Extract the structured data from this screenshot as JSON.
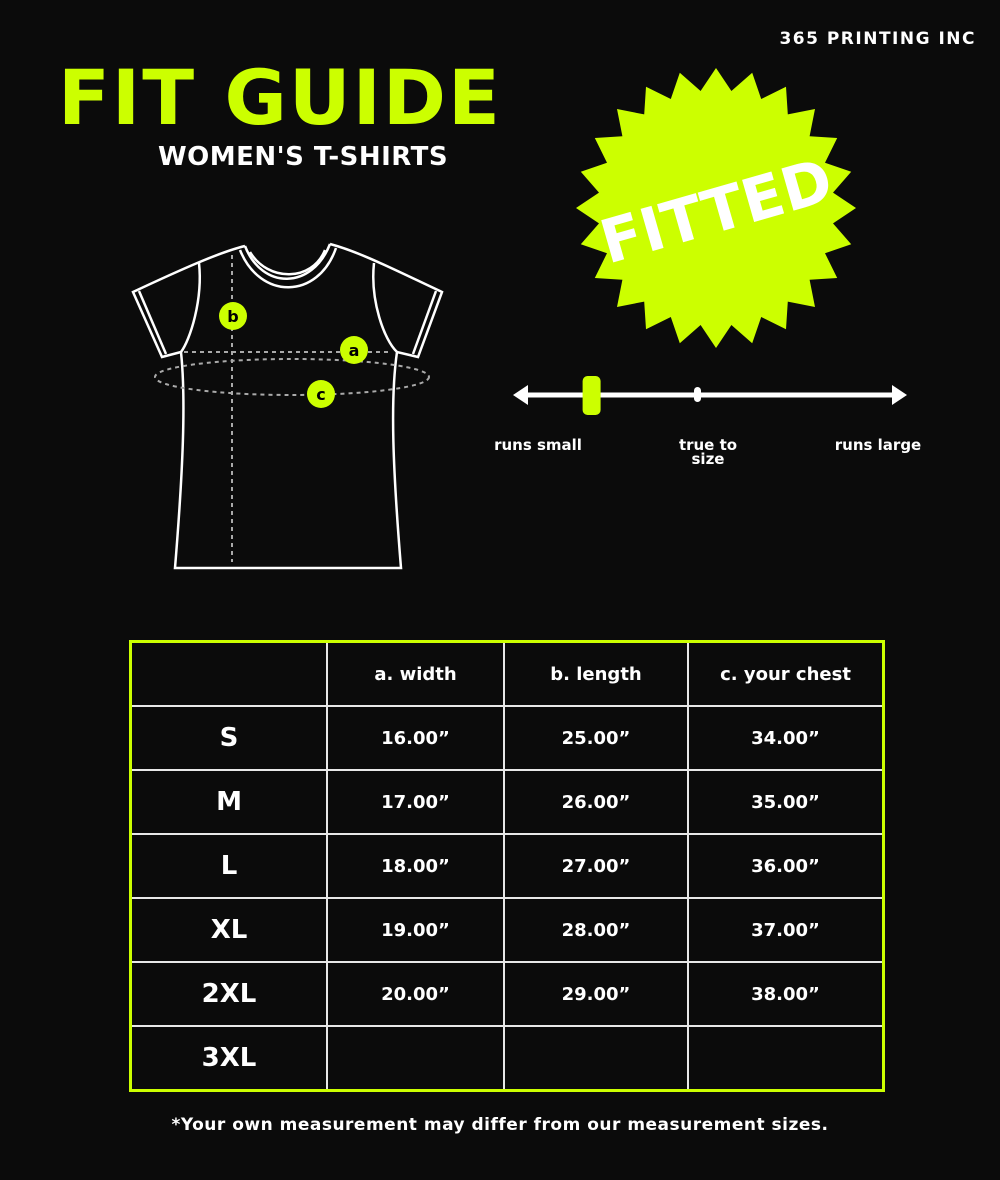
{
  "colors": {
    "accent": "#ccff00",
    "background": "#0b0b0b",
    "line": "#ffffff"
  },
  "brand": "365 PRINTING INC",
  "title": "FIT GUIDE",
  "subtitle": "WOMEN'S T-SHIRTS",
  "badge": "FITTED",
  "diagram": {
    "markers": [
      "a",
      "b",
      "c"
    ]
  },
  "fit_scale": {
    "labels": [
      "runs small",
      "true to size",
      "runs large"
    ],
    "position": 0.18
  },
  "table": {
    "headers": [
      "",
      "a. width",
      "b. length",
      "c. your chest"
    ],
    "rows": [
      [
        "S",
        "16.00”",
        "25.00”",
        "34.00”"
      ],
      [
        "M",
        "17.00”",
        "26.00”",
        "35.00”"
      ],
      [
        "L",
        "18.00”",
        "27.00”",
        "36.00”"
      ],
      [
        "XL",
        "19.00”",
        "28.00”",
        "37.00”"
      ],
      [
        "2XL",
        "20.00”",
        "29.00”",
        "38.00”"
      ],
      [
        "3XL",
        "",
        "",
        ""
      ]
    ]
  },
  "note": "*Your own measurement may differ from our measurement sizes."
}
